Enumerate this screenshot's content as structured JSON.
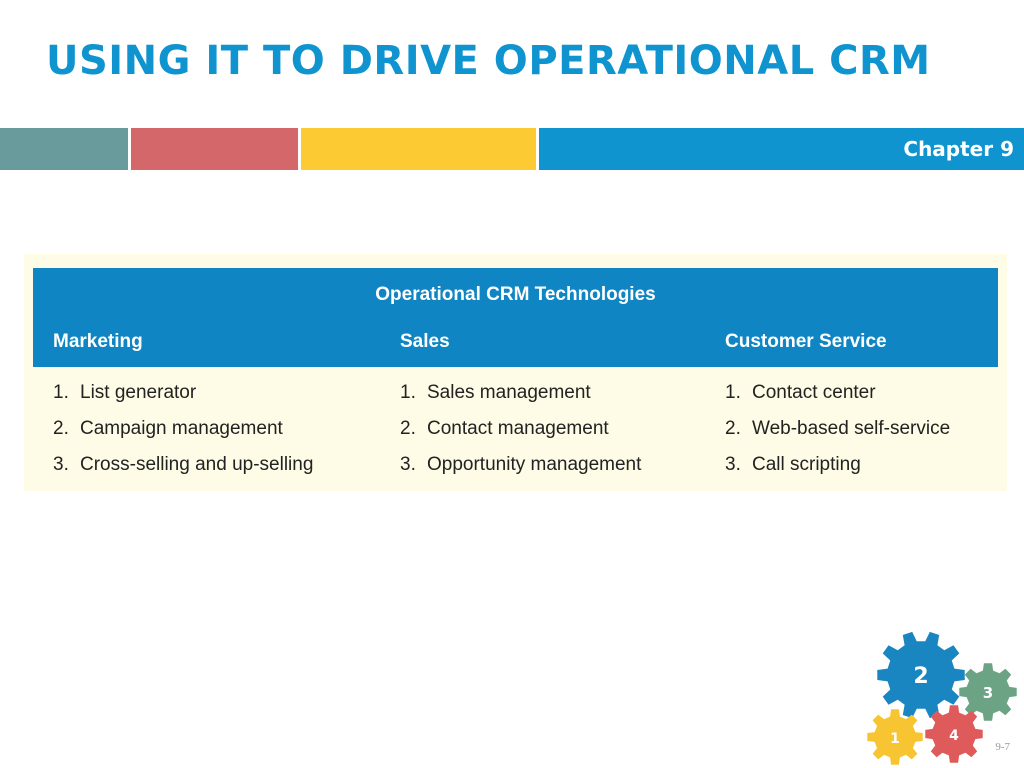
{
  "slide": {
    "title": "USING IT TO DRIVE OPERATIONAL CRM",
    "chapter": "Chapter 9",
    "page_number": "9-7"
  },
  "table": {
    "caption": "Operational CRM Technologies",
    "columns": [
      {
        "header": "Marketing",
        "items": [
          {
            "num": "1.",
            "text": "List generator"
          },
          {
            "num": "2.",
            "text": "Campaign management"
          },
          {
            "num": "3.",
            "text": "Cross-selling and up-selling"
          }
        ]
      },
      {
        "header": "Sales",
        "items": [
          {
            "num": "1.",
            "text": "Sales management"
          },
          {
            "num": "2.",
            "text": "Contact management"
          },
          {
            "num": "3.",
            "text": "Opportunity management"
          }
        ]
      },
      {
        "header": "Customer Service",
        "items": [
          {
            "num": "1.",
            "text": "Contact center"
          },
          {
            "num": "2.",
            "text": "Web-based self-service"
          },
          {
            "num": "3.",
            "text": "Call scripting"
          }
        ]
      }
    ]
  },
  "gears": [
    {
      "label": "2",
      "color": "#1a86c1"
    },
    {
      "label": "3",
      "color": "#6ba384"
    },
    {
      "label": "1",
      "color": "#f8c532"
    },
    {
      "label": "4",
      "color": "#df5b5b"
    }
  ],
  "colors": {
    "accent_blue": "#0f94cf",
    "teal": "#6a9b9c",
    "red": "#d3676a",
    "yellow": "#fccb34",
    "table_header": "#0f86c3",
    "table_body": "#fefbe6"
  }
}
